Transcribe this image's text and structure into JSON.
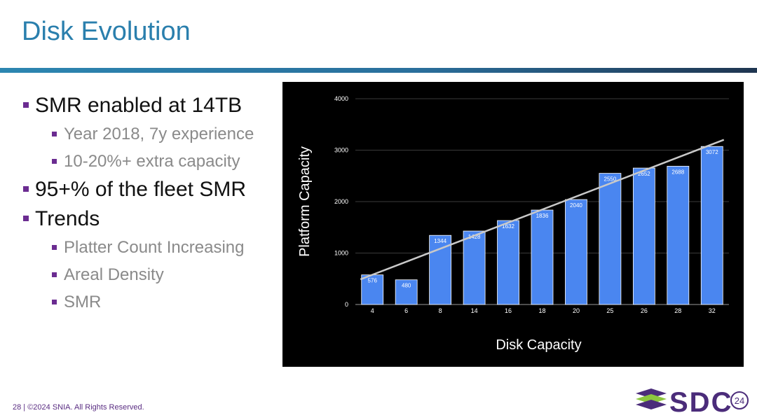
{
  "slide": {
    "title": "Disk Evolution",
    "bullets": [
      {
        "level": 1,
        "text": "SMR enabled at 14TB"
      },
      {
        "level": 2,
        "text": "Year 2018, 7y experience"
      },
      {
        "level": 2,
        "text": "10-20%+ extra capacity"
      },
      {
        "level": 1,
        "text": "95+% of the fleet SMR"
      },
      {
        "level": 1,
        "text": "Trends"
      },
      {
        "level": 2,
        "text": "Platter Count Increasing"
      },
      {
        "level": 2,
        "text": "Areal Density"
      },
      {
        "level": 2,
        "text": "SMR"
      }
    ]
  },
  "footer": {
    "page": "28",
    "copyright": "28 | ©2024 SNIA. All Rights Reserved."
  },
  "logo": {
    "text": "SDC",
    "badge": "24",
    "colors": {
      "stack_dark": "#4b2c7a",
      "stack_light": "#8cc63e",
      "text": "#4b2c7a"
    }
  },
  "colors": {
    "title": "#2a7fad",
    "bullet_square": "#6b2c91",
    "bar": "#4a86f0",
    "trend_line": "#c9c9c9",
    "chart_bg": "#000000"
  },
  "chart_data": {
    "type": "bar",
    "categories": [
      "4",
      "6",
      "8",
      "14",
      "16",
      "18",
      "20",
      "25",
      "26",
      "28",
      "32"
    ],
    "values": [
      576,
      480,
      1344,
      1428,
      1632,
      1836,
      2040,
      2550,
      2652,
      2688,
      3072
    ],
    "data_labels": [
      "576",
      "480",
      "1344",
      "1428",
      "1632",
      "1836",
      "2040",
      "2550",
      "2652",
      "2688",
      "3072"
    ],
    "xlabel": "Disk Capacity",
    "ylabel": "Platform Capacity",
    "ylim": [
      0,
      4000
    ],
    "yticks": [
      "0",
      "1000",
      "2000",
      "3000",
      "4000"
    ],
    "trendline": true,
    "grid": true
  }
}
